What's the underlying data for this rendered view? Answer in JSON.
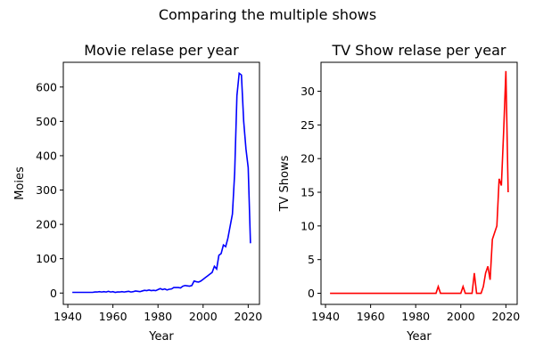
{
  "suptitle": "Comparing the multiple shows",
  "chart_data": [
    {
      "type": "line",
      "title": "Movie relase per year",
      "xlabel": "Year",
      "ylabel": "Moies",
      "xlim": [
        1938,
        2025
      ],
      "ylim": [
        -33,
        672
      ],
      "xticks": [
        1940,
        1960,
        1980,
        2000,
        2020
      ],
      "yticks": [
        0,
        100,
        200,
        300,
        400,
        500,
        600
      ],
      "grid": false,
      "series": [
        {
          "color": "#0000ff",
          "x": [
            1942,
            1943,
            1944,
            1945,
            1946,
            1947,
            1948,
            1949,
            1950,
            1951,
            1952,
            1953,
            1954,
            1955,
            1956,
            1957,
            1958,
            1959,
            1960,
            1961,
            1962,
            1963,
            1964,
            1965,
            1966,
            1967,
            1968,
            1969,
            1970,
            1971,
            1972,
            1973,
            1974,
            1975,
            1976,
            1977,
            1978,
            1979,
            1980,
            1981,
            1982,
            1983,
            1984,
            1985,
            1986,
            1987,
            1988,
            1989,
            1990,
            1991,
            1992,
            1993,
            1994,
            1995,
            1996,
            1997,
            1998,
            1999,
            2000,
            2001,
            2002,
            2003,
            2004,
            2005,
            2006,
            2007,
            2008,
            2009,
            2010,
            2011,
            2012,
            2013,
            2014,
            2015,
            2016,
            2017,
            2018,
            2019,
            2020,
            2021
          ],
          "values": [
            2,
            2,
            2,
            2,
            2,
            2,
            2,
            2,
            2,
            2,
            3,
            3,
            4,
            3,
            4,
            3,
            5,
            3,
            4,
            2,
            3,
            3,
            4,
            3,
            4,
            5,
            3,
            4,
            6,
            5,
            4,
            6,
            8,
            7,
            9,
            7,
            8,
            7,
            10,
            13,
            10,
            12,
            9,
            11,
            12,
            16,
            16,
            16,
            15,
            20,
            22,
            21,
            20,
            22,
            35,
            33,
            32,
            35,
            40,
            45,
            50,
            55,
            60,
            78,
            70,
            110,
            115,
            140,
            135,
            160,
            195,
            230,
            350,
            575,
            640,
            635,
            500,
            420,
            365,
            145
          ]
        }
      ]
    },
    {
      "type": "line",
      "title": "TV Show relase per year",
      "xlabel": "Year",
      "ylabel": "TV Shows",
      "xlim": [
        1938,
        2025
      ],
      "ylim": [
        -1.65,
        34.3
      ],
      "xticks": [
        1940,
        1960,
        1980,
        2000,
        2020
      ],
      "yticks": [
        0,
        5,
        10,
        15,
        20,
        25,
        30
      ],
      "grid": false,
      "series": [
        {
          "color": "#ff0000",
          "x": [
            1942,
            1945,
            1950,
            1955,
            1960,
            1965,
            1970,
            1975,
            1980,
            1985,
            1988,
            1989,
            1990,
            1991,
            1992,
            1995,
            1998,
            2000,
            2001,
            2002,
            2003,
            2004,
            2005,
            2006,
            2007,
            2008,
            2009,
            2010,
            2011,
            2012,
            2013,
            2014,
            2015,
            2016,
            2017,
            2018,
            2019,
            2020,
            2021
          ],
          "values": [
            0,
            0,
            0,
            0,
            0,
            0,
            0,
            0,
            0,
            0,
            0,
            0,
            1,
            0,
            0,
            0,
            0,
            0,
            1,
            0,
            0,
            0,
            0,
            3,
            0,
            0,
            0,
            1,
            3,
            4,
            2,
            8,
            9,
            10,
            17,
            16,
            24,
            33,
            15
          ]
        }
      ]
    }
  ]
}
